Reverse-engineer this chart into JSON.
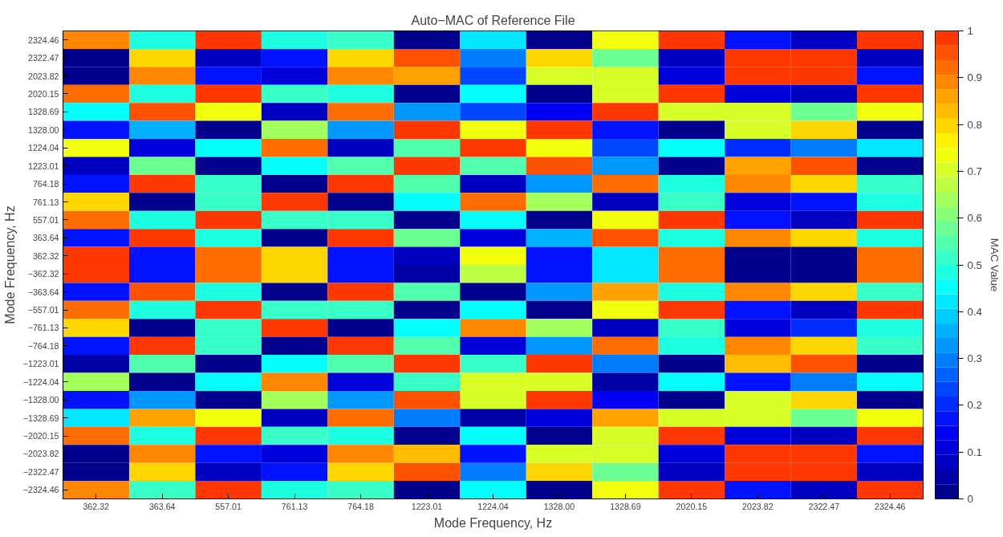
{
  "chart_data": {
    "type": "heatmap",
    "title": "Auto−MAC of Reference File",
    "xlabel": "Mode Frequency, Hz",
    "ylabel": "Mode Frequency, Hz",
    "clabel": "MAC Value",
    "categories": [
      "362.32",
      "363.64",
      "557.01",
      "761.13",
      "764.18",
      "1223.01",
      "1224.04",
      "1328.00",
      "1328.69",
      "2020.15",
      "2023.82",
      "2322.47",
      "2324.46"
    ],
    "y_categories": [
      "2324.46",
      "2322.47",
      "2023.82",
      "2020.15",
      "1328.69",
      "1328.00",
      "1224.04",
      "1223.01",
      "764.18",
      "761.13",
      "557.01",
      "363.64",
      "362.32",
      "−362.32",
      "−363.64",
      "−557.01",
      "−761.13",
      "−764.18",
      "−1223.01",
      "−1224.04",
      "−1328.00",
      "−1328.69",
      "−2020.15",
      "−2023.82",
      "−2322.47",
      "−2324.46"
    ],
    "cells": [
      [
        0.89,
        0.48,
        0.98,
        0.48,
        0.52,
        0.02,
        0.41,
        0.02,
        0.72,
        0.98,
        0.17,
        0.08,
        0.98
      ],
      [
        0.02,
        0.8,
        0.08,
        0.17,
        0.8,
        0.95,
        0.3,
        0.8,
        0.57,
        0.08,
        0.98,
        0.98,
        0.08
      ],
      [
        0.02,
        0.89,
        0.17,
        0.1,
        0.89,
        0.87,
        0.22,
        0.69,
        0.69,
        0.12,
        0.98,
        0.98,
        0.17
      ],
      [
        0.92,
        0.48,
        0.98,
        0.52,
        0.48,
        0.02,
        0.44,
        0.02,
        0.69,
        0.98,
        0.12,
        0.08,
        0.98
      ],
      [
        0.44,
        0.95,
        0.72,
        0.08,
        0.92,
        0.34,
        0.22,
        0.15,
        0.98,
        0.69,
        0.69,
        0.57,
        0.72
      ],
      [
        0.17,
        0.37,
        0.02,
        0.63,
        0.34,
        0.97,
        0.72,
        0.98,
        0.17,
        0.02,
        0.69,
        0.8,
        0.02
      ],
      [
        0.72,
        0.12,
        0.44,
        0.92,
        0.08,
        0.55,
        0.98,
        0.72,
        0.22,
        0.44,
        0.2,
        0.3,
        0.41
      ],
      [
        0.08,
        0.57,
        0.02,
        0.44,
        0.55,
        0.98,
        0.55,
        0.96,
        0.34,
        0.02,
        0.87,
        0.95,
        0.02
      ],
      [
        0.17,
        0.98,
        0.52,
        0.02,
        0.98,
        0.55,
        0.08,
        0.34,
        0.92,
        0.48,
        0.89,
        0.8,
        0.52
      ],
      [
        0.8,
        0.02,
        0.52,
        0.98,
        0.02,
        0.44,
        0.92,
        0.63,
        0.08,
        0.52,
        0.1,
        0.17,
        0.48
      ],
      [
        0.92,
        0.48,
        0.98,
        0.52,
        0.52,
        0.02,
        0.44,
        0.02,
        0.72,
        0.98,
        0.17,
        0.08,
        0.98
      ],
      [
        0.17,
        0.98,
        0.48,
        0.02,
        0.98,
        0.57,
        0.12,
        0.37,
        0.95,
        0.48,
        0.89,
        0.8,
        0.48
      ],
      [
        0.98,
        0.17,
        0.92,
        0.8,
        0.17,
        0.08,
        0.72,
        0.17,
        0.43,
        0.92,
        0.02,
        0.02,
        0.92
      ],
      [
        0.98,
        0.17,
        0.92,
        0.8,
        0.17,
        0.05,
        0.66,
        0.17,
        0.42,
        0.92,
        0.02,
        0.02,
        0.92
      ],
      [
        0.17,
        0.96,
        0.48,
        0.02,
        0.98,
        0.55,
        0.02,
        0.34,
        0.87,
        0.48,
        0.89,
        0.8,
        0.52
      ],
      [
        0.92,
        0.48,
        0.98,
        0.52,
        0.52,
        0.02,
        0.44,
        0.02,
        0.72,
        0.98,
        0.17,
        0.08,
        0.98
      ],
      [
        0.8,
        0.02,
        0.52,
        0.98,
        0.02,
        0.44,
        0.89,
        0.63,
        0.08,
        0.52,
        0.1,
        0.2,
        0.48
      ],
      [
        0.17,
        0.98,
        0.52,
        0.02,
        0.98,
        0.55,
        0.1,
        0.34,
        0.92,
        0.48,
        0.89,
        0.8,
        0.52
      ],
      [
        0.05,
        0.55,
        0.02,
        0.44,
        0.55,
        0.98,
        0.52,
        0.97,
        0.3,
        0.02,
        0.84,
        0.95,
        0.02
      ],
      [
        0.65,
        0.02,
        0.44,
        0.89,
        0.1,
        0.52,
        0.69,
        0.69,
        0.05,
        0.46,
        0.17,
        0.3,
        0.44
      ],
      [
        0.17,
        0.34,
        0.02,
        0.63,
        0.34,
        0.96,
        0.69,
        0.98,
        0.15,
        0.02,
        0.69,
        0.8,
        0.02
      ],
      [
        0.42,
        0.87,
        0.72,
        0.08,
        0.92,
        0.3,
        0.05,
        0.12,
        0.87,
        0.69,
        0.69,
        0.57,
        0.72
      ],
      [
        0.92,
        0.48,
        0.98,
        0.52,
        0.48,
        0.02,
        0.46,
        0.02,
        0.69,
        0.98,
        0.12,
        0.08,
        0.98
      ],
      [
        0.02,
        0.89,
        0.17,
        0.1,
        0.89,
        0.84,
        0.17,
        0.69,
        0.69,
        0.12,
        0.98,
        0.98,
        0.17
      ],
      [
        0.02,
        0.8,
        0.08,
        0.17,
        0.8,
        0.95,
        0.3,
        0.8,
        0.57,
        0.08,
        0.98,
        0.98,
        0.08
      ],
      [
        0.89,
        0.52,
        0.98,
        0.48,
        0.52,
        0.02,
        0.44,
        0.02,
        0.72,
        0.98,
        0.17,
        0.08,
        0.98
      ]
    ],
    "clim": [
      0,
      1
    ],
    "cticks": [
      0,
      0.1,
      0.2,
      0.3,
      0.4,
      0.5,
      0.6,
      0.7,
      0.8,
      0.9,
      1
    ]
  }
}
